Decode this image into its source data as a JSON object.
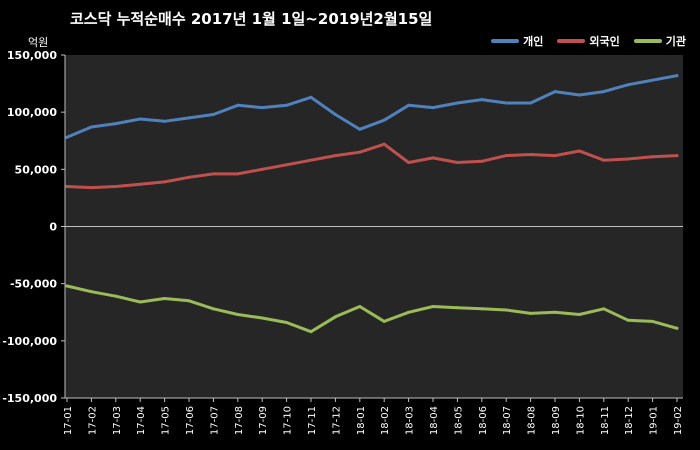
{
  "chart_data": {
    "type": "line",
    "title": "코스닥 누적순매수 2017년 1월 1일~2019년2월15일",
    "unit_label": "억원",
    "xlabel": "",
    "ylabel": "",
    "ylim": [
      -150000,
      150000
    ],
    "y_ticks": [
      -150000,
      -100000,
      -50000,
      0,
      50000,
      100000,
      150000
    ],
    "y_tick_labels": [
      "-150,000",
      "-100,000",
      "-50,000",
      "0",
      "50,000",
      "100,000",
      "150,000"
    ],
    "categories": [
      "17-01",
      "17-02",
      "17-03",
      "17-04",
      "17-05",
      "17-06",
      "17-07",
      "17-08",
      "17-09",
      "17-10",
      "17-11",
      "17-12",
      "18-01",
      "18-02",
      "18-03",
      "18-04",
      "18-05",
      "18-06",
      "18-07",
      "18-08",
      "18-09",
      "18-10",
      "18-11",
      "18-12",
      "19-01",
      "19-02"
    ],
    "legend_position": "top-right",
    "grid": false,
    "series": [
      {
        "name": "개인",
        "color": "#4F81BD",
        "values": [
          78000,
          87000,
          90000,
          94000,
          92000,
          95000,
          98000,
          106000,
          104000,
          106000,
          113000,
          98000,
          85000,
          93000,
          106000,
          104000,
          108000,
          111000,
          108000,
          108000,
          118000,
          115000,
          118000,
          124000,
          128000,
          132000
        ]
      },
      {
        "name": "외국인",
        "color": "#C0504D",
        "values": [
          35000,
          34000,
          35000,
          37000,
          39000,
          43000,
          46000,
          46000,
          50000,
          54000,
          58000,
          62000,
          65000,
          72000,
          56000,
          60000,
          56000,
          57000,
          62000,
          63000,
          62000,
          66000,
          58000,
          59000,
          61000,
          62000
        ]
      },
      {
        "name": "기관",
        "color": "#9BBB59",
        "values": [
          -52000,
          -57000,
          -61000,
          -66000,
          -63000,
          -65000,
          -72000,
          -77000,
          -80000,
          -84000,
          -92000,
          -79000,
          -70000,
          -83000,
          -75000,
          -70000,
          -71000,
          -72000,
          -73000,
          -76000,
          -75000,
          -77000,
          -72000,
          -82000,
          -83000,
          -89000
        ]
      }
    ]
  }
}
